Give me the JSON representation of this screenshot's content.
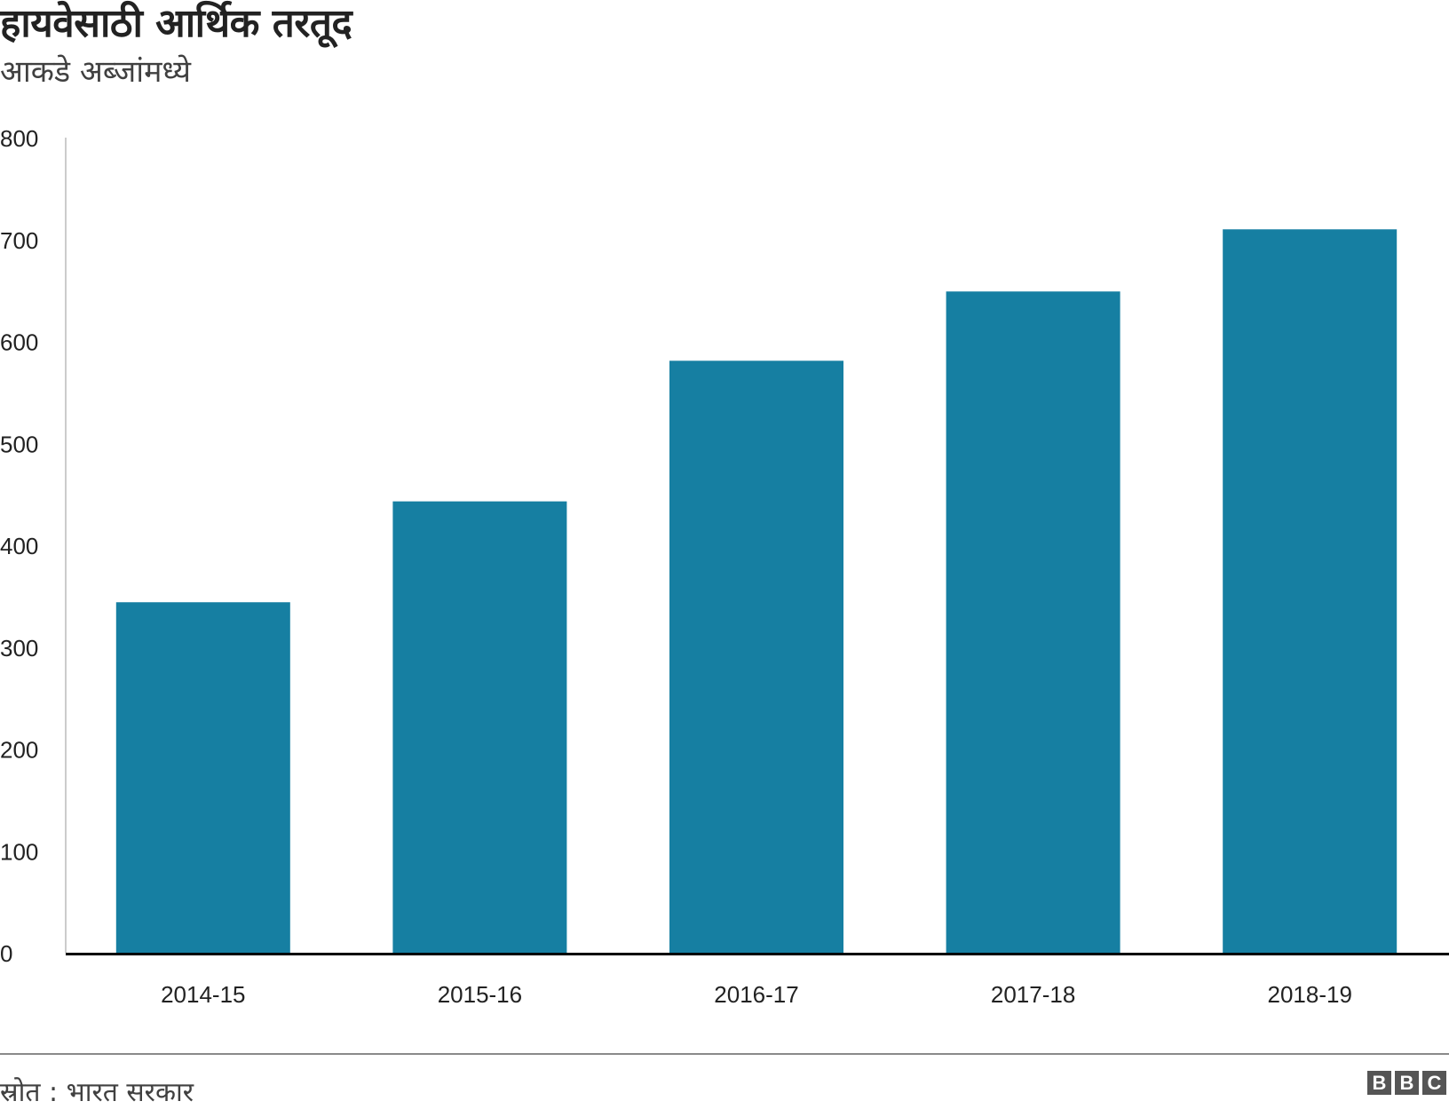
{
  "title": "हायवेसाठी आर्थिक तरतूद",
  "subtitle": "आकडे अब्जांमध्ये",
  "source": "स्रोत : भारत सरकार",
  "logo": {
    "letters": [
      "B",
      "B",
      "C"
    ]
  },
  "colors": {
    "bar": "#167fa2",
    "axis": "#000000",
    "gridline": "#cccccc"
  },
  "chart_data": {
    "type": "bar",
    "categories": [
      "2014-15",
      "2015-16",
      "2016-17",
      "2017-18",
      "2018-19"
    ],
    "values": [
      344,
      443,
      581,
      649,
      710
    ],
    "title": "हायवेसाठी आर्थिक तरतूद",
    "subtitle": "आकडे अब्जांमध्ये",
    "xlabel": "",
    "ylabel": "",
    "ylim": [
      0,
      800
    ],
    "yticks": [
      0,
      100,
      200,
      300,
      400,
      500,
      600,
      700,
      800
    ],
    "grid": false,
    "legend": "none"
  }
}
